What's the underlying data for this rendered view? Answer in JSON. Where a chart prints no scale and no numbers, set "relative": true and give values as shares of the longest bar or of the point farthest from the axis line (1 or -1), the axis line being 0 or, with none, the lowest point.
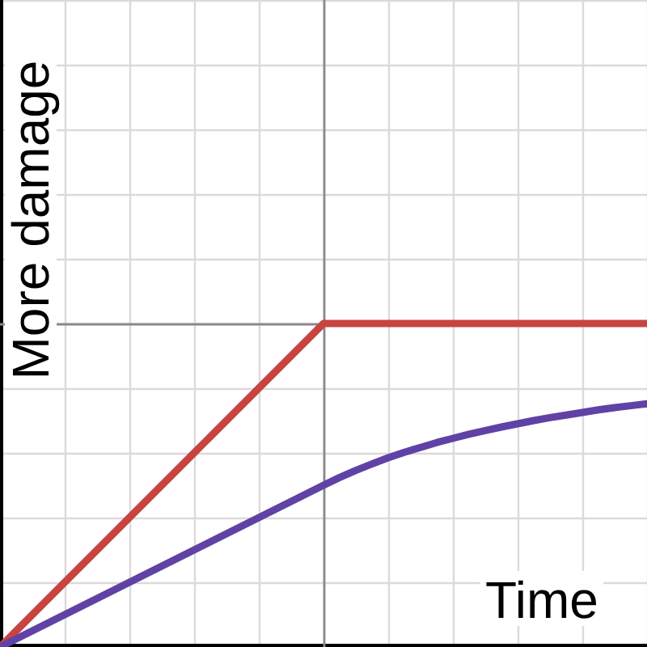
{
  "chart_data": {
    "type": "line",
    "xlabel": "Time",
    "ylabel": "More damage",
    "relative": true,
    "categories": [
      null,
      null,
      null,
      null,
      null,
      null,
      null,
      null,
      null,
      null,
      null,
      null,
      null,
      null,
      null,
      null,
      null,
      null,
      null,
      null,
      null,
      null,
      null,
      null,
      null,
      null,
      null,
      null,
      null,
      null,
      null,
      null,
      null,
      null,
      null,
      null,
      null,
      null,
      null,
      null,
      null
    ],
    "series": [
      {
        "color": "#c74440",
        "values": [
          0,
          0.05,
          0.1,
          0.15,
          0.2,
          0.25,
          0.3,
          0.35,
          0.4,
          0.45,
          0.5,
          0.55,
          0.6,
          0.65,
          0.7,
          0.75,
          0.8,
          0.85,
          0.9,
          0.95,
          1,
          1,
          1,
          1,
          1,
          1,
          1,
          1,
          1,
          1,
          1,
          1,
          1,
          1,
          1,
          1,
          1,
          1,
          1,
          1,
          1
        ]
      },
      {
        "color": "#6042a6",
        "values": [
          0,
          0.025,
          0.05,
          0.075,
          0.1,
          0.125,
          0.15,
          0.175,
          0.2,
          0.225,
          0.25,
          0.275,
          0.3,
          0.325,
          0.35,
          0.375,
          0.4,
          0.425,
          0.45,
          0.475,
          0.5,
          0.524,
          0.546,
          0.566,
          0.585,
          0.602,
          0.617,
          0.632,
          0.645,
          0.658,
          0.669,
          0.68,
          0.69,
          0.7,
          0.709,
          0.717,
          0.725,
          0.733,
          0.74,
          0.746,
          0.752
        ]
      }
    ],
    "grid": true,
    "tick_labels": false,
    "marker": "none"
  }
}
